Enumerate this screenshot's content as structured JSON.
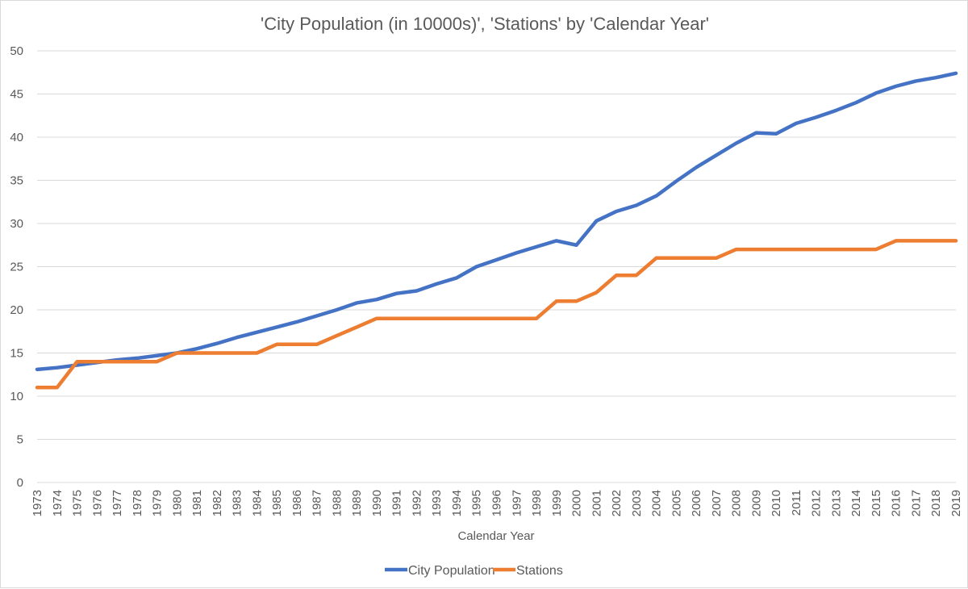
{
  "chart_data": {
    "type": "line",
    "title": "'City Population (in 10000s)', 'Stations' by 'Calendar Year'",
    "xlabel": "Calendar Year",
    "ylabel": "",
    "ylim": [
      0,
      50
    ],
    "yticks": [
      "0",
      "5",
      "10",
      "15",
      "20",
      "25",
      "30",
      "35",
      "40",
      "45",
      "50"
    ],
    "grid": true,
    "legend": "bottom",
    "categories": [
      "1973",
      "1974",
      "1975",
      "1976",
      "1977",
      "1978",
      "1979",
      "1980",
      "1981",
      "1982",
      "1983",
      "1984",
      "1985",
      "1986",
      "1987",
      "1988",
      "1989",
      "1990",
      "1991",
      "1992",
      "1993",
      "1994",
      "1995",
      "1996",
      "1997",
      "1998",
      "1999",
      "2000",
      "2001",
      "2002",
      "2003",
      "2004",
      "2005",
      "2006",
      "2007",
      "2008",
      "2009",
      "2010",
      "2011",
      "2012",
      "2013",
      "2014",
      "2015",
      "2016",
      "2017",
      "2018",
      "2019"
    ],
    "series": [
      {
        "name": "City Population",
        "color": "#4472C4",
        "values": [
          13.1,
          13.3,
          13.6,
          13.9,
          14.2,
          14.4,
          14.7,
          15.0,
          15.5,
          16.1,
          16.8,
          17.4,
          18.0,
          18.6,
          19.3,
          20.0,
          20.8,
          21.2,
          21.9,
          22.2,
          23.0,
          23.7,
          25.0,
          25.8,
          26.6,
          27.3,
          28.0,
          27.5,
          30.3,
          31.4,
          32.1,
          33.2,
          34.9,
          36.5,
          37.9,
          39.3,
          40.5,
          40.4,
          41.6,
          42.3,
          43.1,
          44.0,
          45.1,
          45.9,
          46.5,
          46.9,
          47.4
        ]
      },
      {
        "name": "Stations",
        "color": "#ED7D31",
        "values": [
          11,
          11,
          14,
          14,
          14,
          14,
          14,
          15,
          15,
          15,
          15,
          15,
          16,
          16,
          16,
          17,
          18,
          19,
          19,
          19,
          19,
          19,
          19,
          19,
          19,
          19,
          21,
          21,
          22,
          24,
          24,
          26,
          26,
          26,
          26,
          27,
          27,
          27,
          27,
          27,
          27,
          27,
          27,
          28,
          28,
          28,
          28
        ]
      }
    ]
  }
}
